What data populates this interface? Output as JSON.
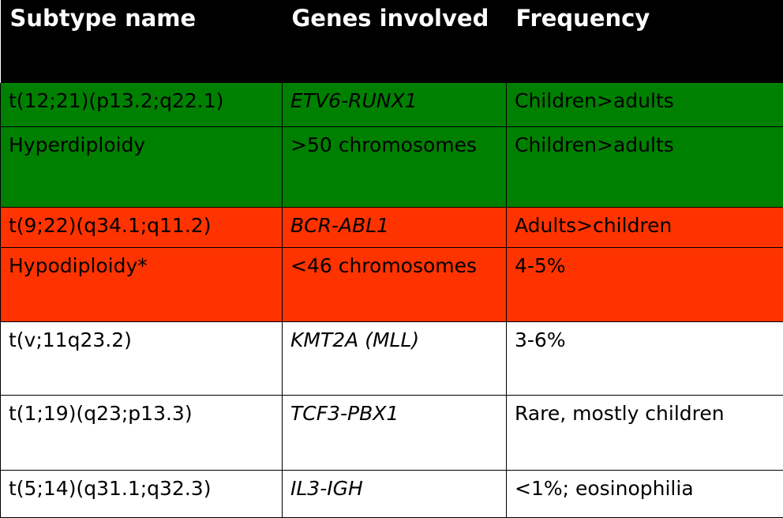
{
  "table": {
    "headers": [
      "Subtype name",
      "Genes involved",
      "Frequency"
    ],
    "rows": [
      {
        "subtype": "t(12;21)(p13.2;q22.1)",
        "genes": "ETV6-RUNX1",
        "frequency": "Children>adults",
        "color": "#008000",
        "genes_italic": true
      },
      {
        "subtype": "Hyperdiploidy",
        "genes": ">50 chromosomes",
        "frequency": "Children>adults",
        "color": "#008000",
        "genes_italic": false
      },
      {
        "subtype": "t(9;22)(q34.1;q11.2)",
        "genes": "BCR-ABL1",
        "frequency": "Adults>children",
        "color": "#ff3300",
        "genes_italic": true
      },
      {
        "subtype": "Hypodiploidy*",
        "genes": "<46 chromosomes",
        "frequency": "4-5%",
        "color": "#ff3300",
        "genes_italic": false
      },
      {
        "subtype": "t(v;11q23.2)",
        "genes": "KMT2A (MLL)",
        "frequency": "3-6%",
        "color": "#ffffff",
        "genes_italic": true
      },
      {
        "subtype": "t(1;19)(q23;p13.3)",
        "genes": "TCF3-PBX1",
        "frequency": "Rare, mostly children",
        "color": "#ffffff",
        "genes_italic": true
      },
      {
        "subtype": "t(5;14)(q31.1;q32.3)",
        "genes": "IL3-IGH",
        "frequency": "<1%; eosinophilia",
        "color": "#ffffff",
        "genes_italic": true
      }
    ]
  }
}
